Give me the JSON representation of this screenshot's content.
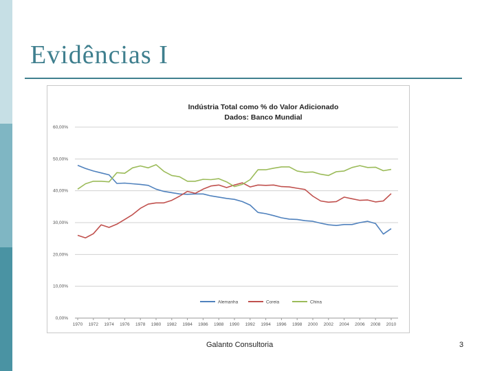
{
  "slide": {
    "title": "Evidências I",
    "footer": "Galanto Consultoria",
    "page_number": "3"
  },
  "colors": {
    "accent": "#3f7f8e",
    "sidebar_light": "#c6dfe5",
    "sidebar_mid": "#7fb6c3",
    "sidebar_dark": "#4a93a3"
  },
  "chart_data": {
    "type": "line",
    "title": "Indústria Total como % do Valor Adicionado",
    "subtitle": "Dados: Banco Mundial",
    "xlabel": "",
    "ylabel": "",
    "ylim": [
      0,
      60
    ],
    "yticks": [
      "0,00%",
      "10,00%",
      "20,00%",
      "30,00%",
      "40,00%",
      "50,00%",
      "60,00%"
    ],
    "xticks": [
      "1970",
      "1972",
      "1974",
      "1976",
      "1978",
      "1980",
      "1982",
      "1984",
      "1986",
      "1988",
      "1990",
      "1992",
      "1994",
      "1996",
      "1998",
      "2000",
      "2002",
      "2004",
      "2006",
      "2008",
      "2010"
    ],
    "grid": true,
    "legend_position": "bottom",
    "x": [
      1970,
      1971,
      1972,
      1973,
      1974,
      1975,
      1976,
      1977,
      1978,
      1979,
      1980,
      1981,
      1982,
      1983,
      1984,
      1985,
      1986,
      1987,
      1988,
      1989,
      1990,
      1991,
      1992,
      1993,
      1994,
      1995,
      1996,
      1997,
      1998,
      1999,
      2000,
      2001,
      2002,
      2003,
      2004,
      2005,
      2006,
      2007,
      2008,
      2009,
      2010
    ],
    "series": [
      {
        "name": "Alemanha",
        "color": "#4f81bd",
        "values": [
          48.0,
          47.0,
          46.2,
          45.6,
          45.0,
          42.3,
          42.4,
          42.2,
          42.0,
          41.7,
          40.5,
          39.8,
          39.4,
          39.0,
          38.9,
          39.0,
          39.0,
          38.4,
          38.0,
          37.6,
          37.3,
          36.6,
          35.5,
          33.2,
          32.8,
          32.2,
          31.5,
          31.1,
          31.0,
          30.6,
          30.4,
          29.8,
          29.3,
          29.1,
          29.4,
          29.4,
          30.0,
          30.4,
          29.7,
          26.4,
          28.1
        ]
      },
      {
        "name": "Coreia",
        "color": "#c0504d",
        "values": [
          26.0,
          25.2,
          26.5,
          29.3,
          28.5,
          29.5,
          31.0,
          32.5,
          34.5,
          35.8,
          36.2,
          36.2,
          37.0,
          38.3,
          39.8,
          39.2,
          40.5,
          41.5,
          41.8,
          41.0,
          41.8,
          42.5,
          41.2,
          41.8,
          41.7,
          41.8,
          41.3,
          41.2,
          40.8,
          40.4,
          38.3,
          36.8,
          36.4,
          36.6,
          38.0,
          37.5,
          37.0,
          37.1,
          36.5,
          36.8,
          39.1
        ]
      },
      {
        "name": "China",
        "color": "#9bbb59",
        "values": [
          40.5,
          42.2,
          43.0,
          43.0,
          42.8,
          45.7,
          45.5,
          47.2,
          47.8,
          47.2,
          48.2,
          46.1,
          44.8,
          44.4,
          43.0,
          43.0,
          43.6,
          43.5,
          43.8,
          42.8,
          41.3,
          42.0,
          43.5,
          46.6,
          46.6,
          47.1,
          47.5,
          47.5,
          46.2,
          45.8,
          45.9,
          45.2,
          44.8,
          46.0,
          46.2,
          47.3,
          47.9,
          47.3,
          47.4,
          46.3,
          46.7
        ]
      }
    ]
  }
}
